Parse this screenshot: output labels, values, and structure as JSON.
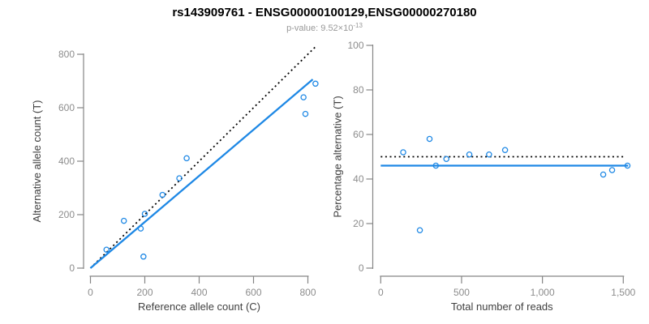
{
  "header": {
    "title": "rs143909761 - ENSG00000100129,ENSG00000270180",
    "p_value_prefix": "p-value: 9.52×10",
    "p_value_exponent": "-13"
  },
  "colors": {
    "accent_blue": "#1E88E5",
    "reference_black": "#000000",
    "axis_line": "#858585",
    "tick_label": "#8C8C8C",
    "axis_title": "#404040",
    "subtitle_gray": "#999999"
  },
  "chart_data": [
    {
      "type": "scatter",
      "title": "",
      "xlabel": "Reference allele count (C)",
      "ylabel": "Alternative allele count (T)",
      "xlim": [
        0,
        840
      ],
      "ylim": [
        0,
        840
      ],
      "grid": false,
      "legend": "none",
      "xtick_values": [
        0,
        200,
        400,
        600,
        800
      ],
      "xtick_labels": [
        "0",
        "200",
        "400",
        "600",
        "800"
      ],
      "ytick_values": [
        0,
        200,
        400,
        600,
        800
      ],
      "ytick_labels": [
        "0",
        "200",
        "400",
        "600",
        "800"
      ],
      "marker": "open-circle",
      "points": [
        [
          59,
          69
        ],
        [
          123,
          177
        ],
        [
          185,
          148
        ],
        [
          195,
          43
        ],
        [
          200,
          203
        ],
        [
          265,
          274
        ],
        [
          327,
          336
        ],
        [
          354,
          411
        ],
        [
          784,
          639
        ],
        [
          791,
          577
        ],
        [
          828,
          690
        ]
      ],
      "lines": [
        {
          "name": "identity-line",
          "style": "dotted",
          "color": "#000000",
          "points": [
            [
              0,
              0
            ],
            [
              830,
              830
            ]
          ]
        },
        {
          "name": "regression-line",
          "style": "solid",
          "color": "#1E88E5",
          "points": [
            [
              0,
              0
            ],
            [
              818,
              706
            ]
          ]
        }
      ]
    },
    {
      "type": "scatter",
      "title": "",
      "xlabel": "Total number of reads",
      "ylabel": "Percentage alternative (T)",
      "xlim": [
        0,
        1540
      ],
      "ylim": [
        0,
        100
      ],
      "grid": false,
      "legend": "none",
      "xtick_values": [
        0,
        500,
        1000,
        1500
      ],
      "xtick_labels": [
        "0",
        "500",
        "1,000",
        "1,500"
      ],
      "ytick_values": [
        0,
        20,
        40,
        60,
        80,
        100
      ],
      "ytick_labels": [
        "0",
        "20",
        "40",
        "60",
        "80",
        "100"
      ],
      "marker": "open-circle",
      "points": [
        [
          139,
          52
        ],
        [
          242,
          17
        ],
        [
          302,
          58
        ],
        [
          341,
          46
        ],
        [
          406,
          49
        ],
        [
          548,
          51
        ],
        [
          670,
          51
        ],
        [
          769,
          53
        ],
        [
          1376,
          42
        ],
        [
          1431,
          44
        ],
        [
          1526,
          46
        ]
      ],
      "lines": [
        {
          "name": "expected-percentage-line",
          "style": "dotted",
          "color": "#000000",
          "points": [
            [
              0,
              50
            ],
            [
              1500,
              50
            ]
          ]
        },
        {
          "name": "fitted-percentage-line",
          "style": "solid",
          "color": "#1E88E5",
          "points": [
            [
              0,
              46
            ],
            [
              1530,
              46
            ]
          ]
        }
      ]
    }
  ]
}
